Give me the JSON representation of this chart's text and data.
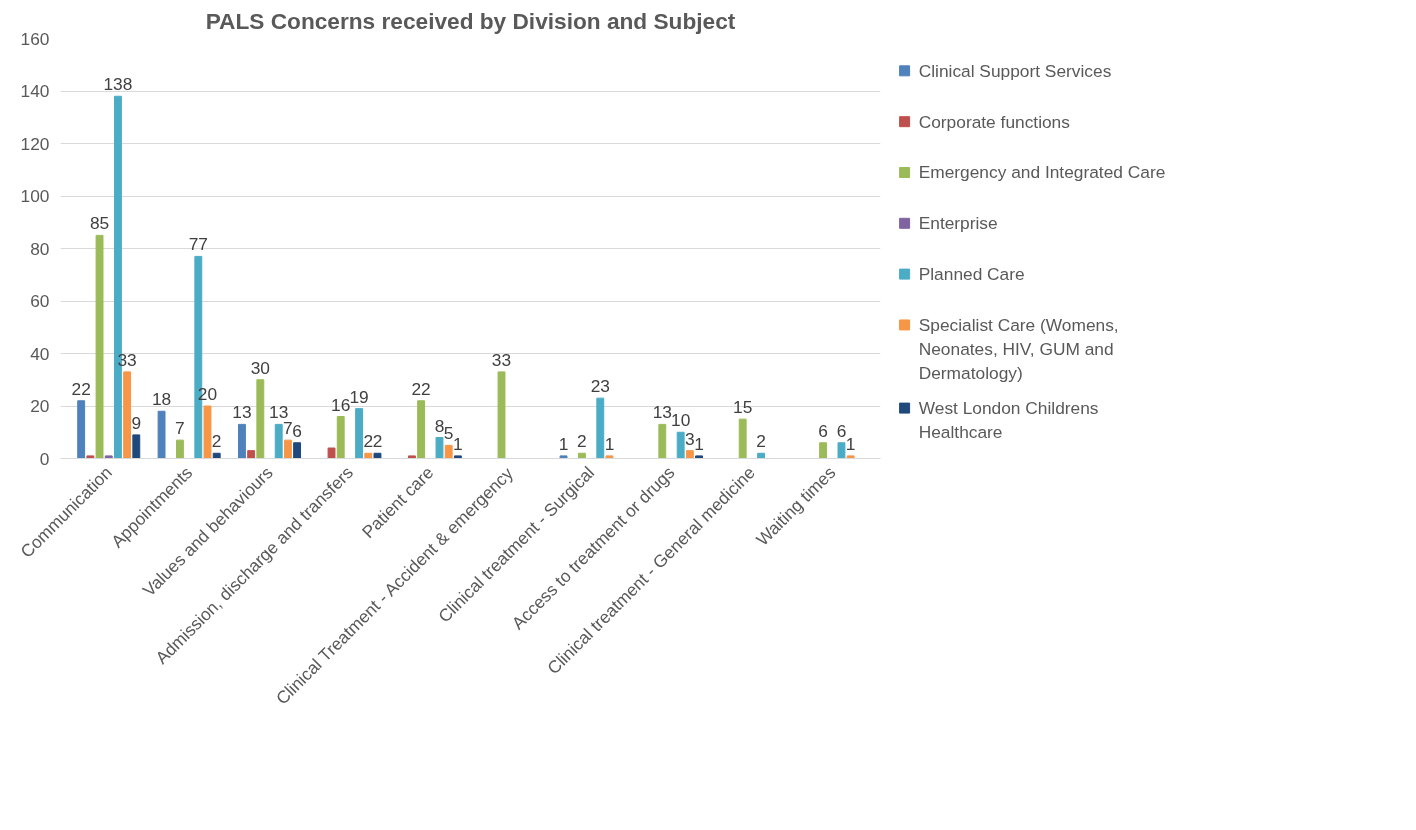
{
  "chart_data": {
    "type": "bar",
    "title": "PALS Concerns received by Division and Subject",
    "categories": [
      "Communication",
      "Appointments",
      "Values and behaviours",
      "Admission, discharge and transfers",
      "Patient care",
      "Clinical Treatment - Accident & emergency",
      "Clinical treatment - Surgical",
      "Access to treatment or drugs",
      "Clinical treatment - General medicine",
      "Waiting times"
    ],
    "series": [
      {
        "name": "Clinical Support Services",
        "color": "#4f81bd",
        "values": [
          22,
          18,
          13,
          null,
          null,
          null,
          1,
          null,
          null,
          null
        ],
        "value_labels": [
          "22",
          "18",
          "13",
          null,
          null,
          null,
          "1",
          null,
          null,
          null
        ]
      },
      {
        "name": "Corporate functions",
        "color": "#c0504d",
        "values": [
          1,
          null,
          3,
          4,
          1,
          null,
          null,
          null,
          null,
          null
        ],
        "value_labels": [
          null,
          null,
          null,
          null,
          null,
          null,
          null,
          null,
          null,
          null
        ]
      },
      {
        "name": "Emergency and Integrated Care",
        "color": "#9bbb59",
        "values": [
          85,
          7,
          30,
          16,
          22,
          33,
          2,
          13,
          15,
          6
        ],
        "value_labels": [
          "85",
          "7",
          "30",
          "16",
          "22",
          "33",
          "2",
          "13",
          "15",
          "6"
        ]
      },
      {
        "name": "Enterprise",
        "color": "#8064a2",
        "values": [
          1,
          null,
          null,
          null,
          null,
          null,
          null,
          null,
          null,
          null
        ],
        "value_labels": [
          null,
          null,
          null,
          null,
          null,
          null,
          null,
          null,
          null,
          null
        ]
      },
      {
        "name": "Planned Care",
        "color": "#4bacc6",
        "values": [
          138,
          77,
          13,
          19,
          8,
          null,
          23,
          10,
          2,
          6
        ],
        "value_labels": [
          "138",
          "77",
          "13",
          "19",
          "8",
          null,
          "23",
          "10",
          "2",
          "6"
        ]
      },
      {
        "name": "Specialist Care (Womens, Neonates, HIV, GUM and Dermatology)",
        "color": "#f79646",
        "values": [
          33,
          20,
          7,
          2,
          5,
          null,
          1,
          3,
          null,
          1
        ],
        "value_labels": [
          "33",
          "20",
          "7",
          "2",
          "5",
          null,
          "1",
          "3",
          null,
          "1"
        ]
      },
      {
        "name": "West London Childrens Healthcare",
        "color": "#1f497d",
        "values": [
          9,
          2,
          6,
          2,
          1,
          null,
          null,
          1,
          null,
          null
        ],
        "value_labels": [
          "9",
          "2",
          "6",
          "2",
          "1",
          null,
          null,
          "1",
          null,
          null
        ]
      }
    ],
    "ylim": [
      0,
      160
    ],
    "yticks": [
      0,
      20,
      40,
      60,
      80,
      100,
      120,
      140,
      160
    ],
    "grid": "y",
    "legend": "right"
  }
}
